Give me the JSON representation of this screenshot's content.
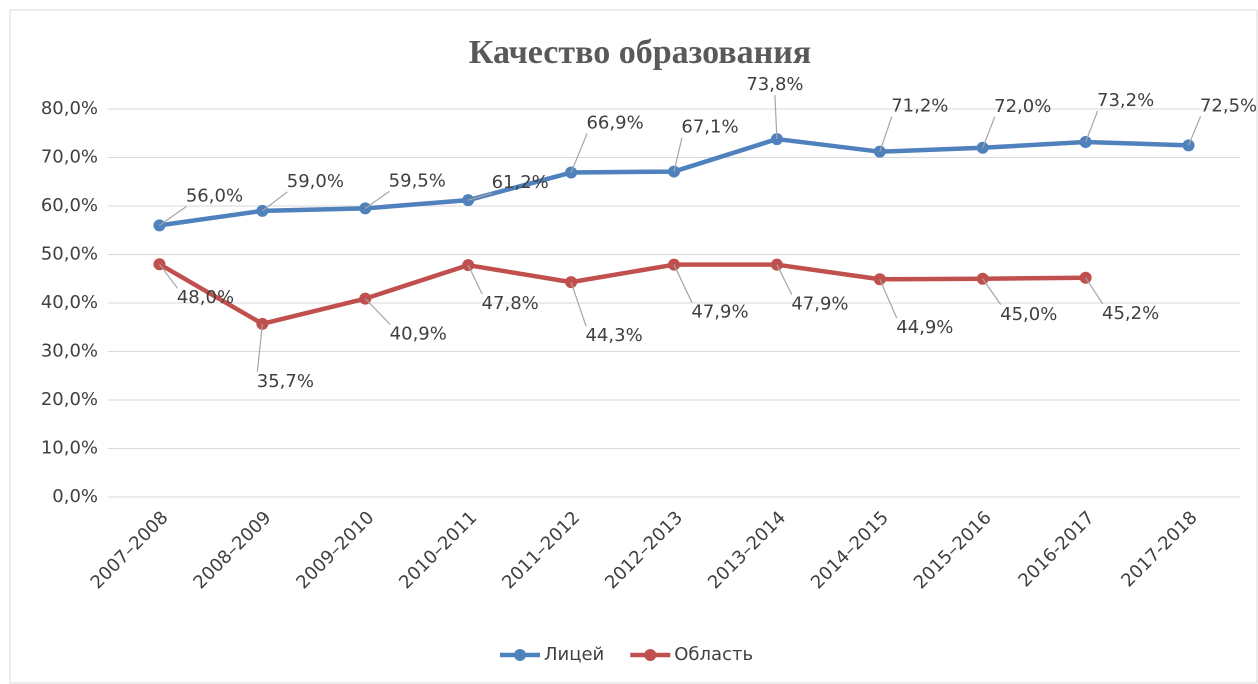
{
  "chart_data": {
    "type": "line",
    "title": "Качество образования",
    "categories": [
      "2007–2008",
      "2008–2009",
      "2009–2010",
      "2010–2011",
      "2011–2012",
      "2012–2013",
      "2013–2014",
      "2014–2015",
      "2015–2016",
      "2016-2017",
      "2017-2018"
    ],
    "series": [
      {
        "name": "Лицей",
        "color": "#4f81bd",
        "values": [
          56.0,
          59.0,
          59.5,
          61.2,
          66.9,
          67.1,
          73.8,
          71.2,
          72.0,
          73.2,
          72.5
        ],
        "value_labels": [
          "56,0%",
          "59,0%",
          "59,5%",
          "61,2%",
          "66,9%",
          "67,1%",
          "73,8%",
          "71,2%",
          "72,0%",
          "73,2%",
          "72,5%"
        ]
      },
      {
        "name": "Область",
        "color": "#c0504d",
        "values": [
          48.0,
          35.7,
          40.9,
          47.8,
          44.3,
          47.9,
          47.9,
          44.9,
          45.0,
          45.2,
          null
        ],
        "value_labels": [
          "48,0%",
          "35,7%",
          "40,9%",
          "47,8%",
          "44,3%",
          "47,9%",
          "47,9%",
          "44,9%",
          "45,0%",
          "45,2%",
          null
        ]
      }
    ],
    "ylim": [
      0,
      80
    ],
    "yticks": [
      {
        "value": 0,
        "label": "0,0%"
      },
      {
        "value": 10,
        "label": "10,0%"
      },
      {
        "value": 20,
        "label": "20,0%"
      },
      {
        "value": 30,
        "label": "30,0%"
      },
      {
        "value": 40,
        "label": "40,0%"
      },
      {
        "value": 50,
        "label": "50,0%"
      },
      {
        "value": 60,
        "label": "60,0%"
      },
      {
        "value": 70,
        "label": "70,0%"
      },
      {
        "value": 80,
        "label": "80,0%"
      }
    ],
    "grid": true,
    "legend": "bottom"
  }
}
